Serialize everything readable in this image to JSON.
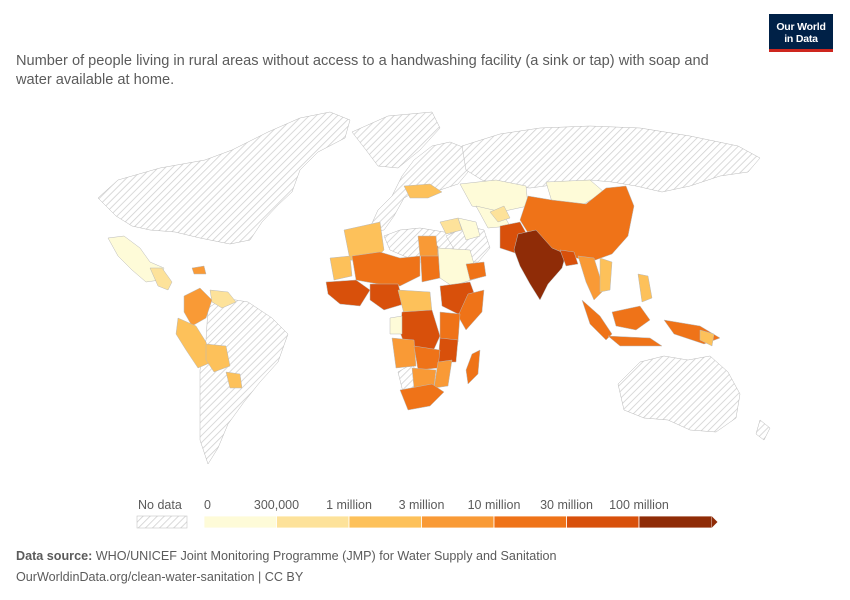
{
  "subtitle": "Number of people living in rural areas without access to a handwashing facility (a sink or tap) with soap and water available at home.",
  "logo": {
    "line1": "Our World",
    "line2": "in Data"
  },
  "legend": {
    "no_data_label": "No data",
    "ticks": [
      "0",
      "300,000",
      "1 million",
      "3 million",
      "10 million",
      "30 million",
      "100 million"
    ],
    "colors": [
      "#fefbd8",
      "#fde29a",
      "#fdc15a",
      "#f99a36",
      "#ef7318",
      "#d8500b",
      "#8f2c07"
    ]
  },
  "footer": {
    "source_label": "Data source:",
    "source_text": "WHO/UNICEF Joint Monitoring Programme (JMP) for Water Supply and Sanitation",
    "url_text": "OurWorldinData.org/clean-water-sanitation | CC BY"
  }
}
